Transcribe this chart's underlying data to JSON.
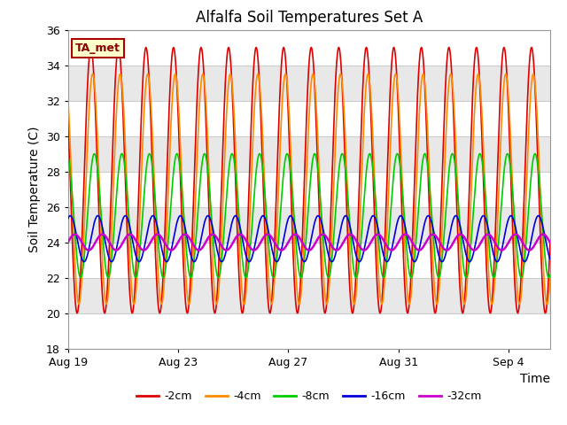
{
  "title": "Alfalfa Soil Temperatures Set A",
  "xlabel": "Time",
  "ylabel": "Soil Temperature (C)",
  "ylim": [
    18,
    36
  ],
  "xlim_days": [
    0,
    17.5
  ],
  "background_color": "#ffffff",
  "plot_bg_color": "#ffffff",
  "grid_color": "#cccccc",
  "annotation_text": "TA_met",
  "annotation_bg": "#ffffcc",
  "annotation_border": "#cc0000",
  "legend_labels": [
    "-2cm",
    "-4cm",
    "-8cm",
    "-16cm",
    "-32cm"
  ],
  "line_colors": [
    "#dd0000",
    "#ff8c00",
    "#00cc00",
    "#0000dd",
    "#cc00cc"
  ],
  "line_widths": [
    1.2,
    1.2,
    1.2,
    1.2,
    1.8
  ],
  "x_tick_labels": [
    "Aug 19",
    "Aug 23",
    "Aug 27",
    "Aug 31",
    "Sep 4"
  ],
  "x_tick_positions": [
    0,
    4,
    8,
    12,
    16
  ],
  "title_fontsize": 12,
  "axis_fontsize": 10,
  "tick_fontsize": 9,
  "legend_fontsize": 9,
  "num_days": 17.5,
  "band_colors": [
    "#ffffff",
    "#e8e8e8"
  ],
  "band_ranges": [
    [
      34,
      36
    ],
    [
      32,
      34
    ],
    [
      30,
      32
    ],
    [
      28,
      30
    ],
    [
      26,
      28
    ],
    [
      24,
      26
    ],
    [
      22,
      24
    ],
    [
      20,
      22
    ],
    [
      18,
      20
    ]
  ],
  "depth_params": [
    {
      "mean": 27.5,
      "amp": 7.5,
      "phase_peak": 0.58,
      "lag_hours": 0
    },
    {
      "mean": 27.0,
      "amp": 6.5,
      "phase_peak": 0.58,
      "lag_hours": 1.5
    },
    {
      "mean": 25.5,
      "amp": 3.5,
      "phase_peak": 0.58,
      "lag_hours": 3
    },
    {
      "mean": 24.2,
      "amp": 1.3,
      "phase_peak": 0.58,
      "lag_hours": 6
    },
    {
      "mean": 24.0,
      "amp": 0.45,
      "phase_peak": 0.58,
      "lag_hours": 10
    }
  ]
}
